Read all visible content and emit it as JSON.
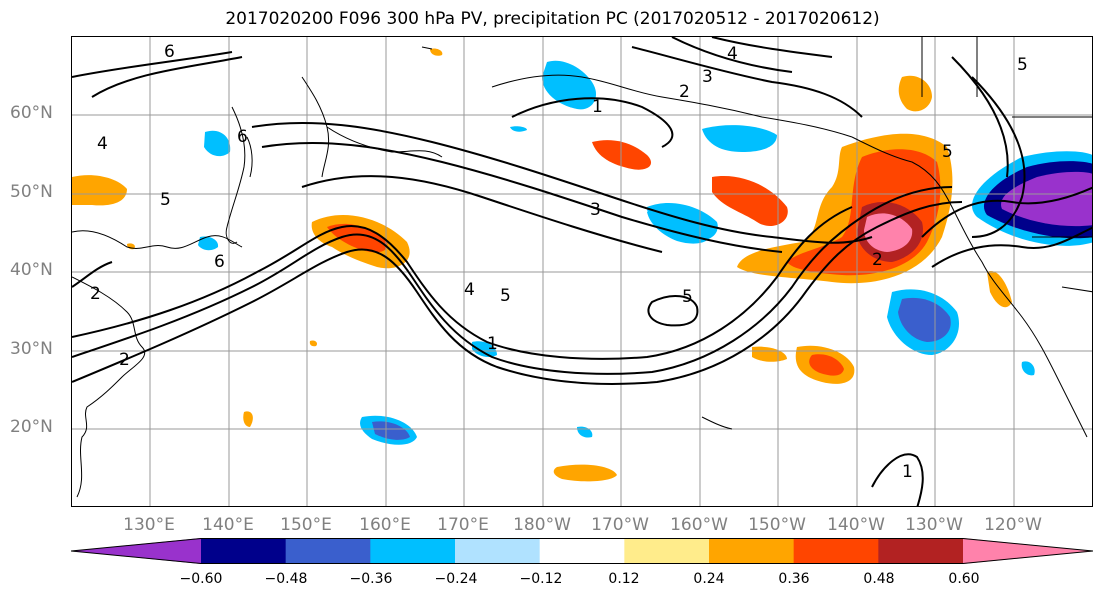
{
  "title": "2017020200 F096 300 hPa PV, precipitation PC (2017020512 - 2017020612)",
  "lat_labels": [
    "60°N",
    "50°N",
    "40°N",
    "30°N",
    "20°N"
  ],
  "lon_labels": [
    "130°E",
    "140°E",
    "150°E",
    "160°E",
    "170°E",
    "180°W",
    "170°W",
    "160°W",
    "150°W",
    "140°W",
    "130°W",
    "120°W"
  ],
  "colorbar": {
    "colors": [
      "#9932cc",
      "#00008b",
      "#3a5fcd",
      "#00bfff",
      "#b0e2ff",
      "#ffffff",
      "#ffec8b",
      "#ffa500",
      "#ff4500",
      "#b22222",
      "#ff82ab"
    ],
    "tick_labels": [
      "−0.60",
      "−0.48",
      "−0.36",
      "−0.24",
      "−0.12",
      "0.12",
      "0.24",
      "0.36",
      "0.48",
      "0.60"
    ]
  },
  "contour_labels": [
    "6",
    "4",
    "3",
    "2",
    "1",
    "6",
    "4",
    "5",
    "3",
    "6",
    "2",
    "2",
    "5",
    "4",
    "1",
    "5",
    "2",
    "5",
    "1",
    "5"
  ]
}
